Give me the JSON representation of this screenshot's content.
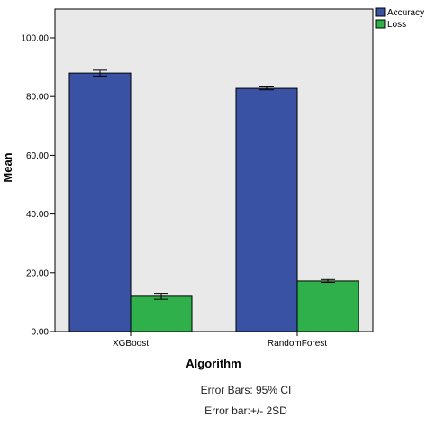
{
  "chart_data": {
    "type": "bar",
    "categories": [
      "XGBoost",
      "RandomForest"
    ],
    "series": [
      {
        "name": "Accuracy",
        "values": [
          88.0,
          82.8
        ],
        "error": [
          1.0,
          0.5
        ],
        "color": "#3952a4"
      },
      {
        "name": "Loss",
        "values": [
          12.0,
          17.2
        ],
        "error": [
          1.0,
          0.5
        ],
        "color": "#2fb04a"
      }
    ],
    "xlabel": "Algorithm",
    "ylabel": "Mean",
    "ylim": [
      0,
      112
    ],
    "yticks": [
      "0.00",
      "20.00",
      "40.00",
      "60.00",
      "80.00",
      "100.00"
    ],
    "legend_position": "top-right",
    "plot_background": "#e9e9e9",
    "notes": [
      "Error Bars: 95% CI",
      "Error bar:+/- 2SD"
    ]
  }
}
